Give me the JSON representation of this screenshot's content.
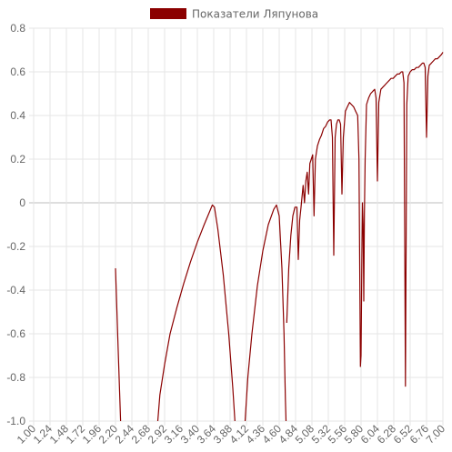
{
  "chart_data": {
    "type": "line",
    "legend": {
      "label": "Показатели Ляпунова",
      "position": "top"
    },
    "colors": {
      "series": "#8b0000",
      "grid": "#e5e5e5",
      "text": "#666666"
    },
    "grid": true,
    "ylim": [
      -1.0,
      0.8
    ],
    "xlim": [
      1.0,
      7.0
    ],
    "y_ticks": [
      "0.8",
      "0.6",
      "0.4",
      "0.2",
      "0",
      "-0.2",
      "-0.4",
      "-0.6",
      "-0.8",
      "-1.0"
    ],
    "x_ticks": [
      "1.00",
      "1.24",
      "1.48",
      "1.72",
      "1.96",
      "2.20",
      "2.44",
      "2.68",
      "2.92",
      "3.16",
      "3.40",
      "3.64",
      "3.88",
      "4.12",
      "4.36",
      "4.60",
      "4.84",
      "5.08",
      "5.32",
      "5.56",
      "5.80",
      "6.04",
      "6.28",
      "6.52",
      "6.76",
      "7.00"
    ],
    "series": [
      {
        "name": "Показатели Ляпунова",
        "segments": [
          [
            [
              2.2,
              -0.3
            ],
            [
              2.24,
              -0.68
            ],
            [
              2.275,
              -1.0
            ]
          ],
          [
            [
              2.82,
              -1.0
            ],
            [
              2.85,
              -0.88
            ],
            [
              2.92,
              -0.74
            ],
            [
              3.0,
              -0.6
            ],
            [
              3.1,
              -0.48
            ],
            [
              3.2,
              -0.37
            ],
            [
              3.3,
              -0.27
            ],
            [
              3.4,
              -0.18
            ],
            [
              3.5,
              -0.1
            ],
            [
              3.58,
              -0.04
            ],
            [
              3.62,
              -0.01
            ],
            [
              3.65,
              -0.02
            ],
            [
              3.7,
              -0.12
            ],
            [
              3.78,
              -0.33
            ],
            [
              3.86,
              -0.6
            ],
            [
              3.92,
              -0.85
            ],
            [
              3.95,
              -1.0
            ]
          ],
          [
            [
              4.1,
              -1.0
            ],
            [
              4.14,
              -0.8
            ],
            [
              4.2,
              -0.6
            ],
            [
              4.28,
              -0.38
            ],
            [
              4.36,
              -0.22
            ],
            [
              4.44,
              -0.1
            ],
            [
              4.52,
              -0.03
            ],
            [
              4.56,
              -0.01
            ],
            [
              4.6,
              -0.06
            ],
            [
              4.64,
              -0.3
            ],
            [
              4.67,
              -0.6
            ],
            [
              4.69,
              -0.9
            ],
            [
              4.7,
              -1.0
            ]
          ],
          [
            [
              4.71,
              -0.55
            ],
            [
              4.74,
              -0.3
            ],
            [
              4.77,
              -0.15
            ],
            [
              4.8,
              -0.06
            ],
            [
              4.83,
              -0.02
            ],
            [
              4.86,
              -0.02
            ],
            [
              4.88,
              -0.26
            ],
            [
              4.9,
              -0.08
            ],
            [
              4.92,
              -0.02
            ],
            [
              4.95,
              0.08
            ],
            [
              4.97,
              0.0
            ],
            [
              4.99,
              0.1
            ],
            [
              5.01,
              0.14
            ],
            [
              5.03,
              0.04
            ],
            [
              5.05,
              0.18
            ],
            [
              5.07,
              0.2
            ],
            [
              5.09,
              0.22
            ],
            [
              5.11,
              -0.06
            ],
            [
              5.13,
              0.2
            ],
            [
              5.16,
              0.26
            ],
            [
              5.19,
              0.29
            ],
            [
              5.22,
              0.31
            ],
            [
              5.25,
              0.34
            ],
            [
              5.28,
              0.35
            ],
            [
              5.31,
              0.37
            ],
            [
              5.34,
              0.38
            ],
            [
              5.36,
              0.38
            ],
            [
              5.38,
              0.3
            ],
            [
              5.4,
              -0.24
            ],
            [
              5.42,
              0.3
            ],
            [
              5.44,
              0.36
            ],
            [
              5.46,
              0.38
            ],
            [
              5.48,
              0.38
            ],
            [
              5.5,
              0.36
            ],
            [
              5.52,
              0.04
            ],
            [
              5.54,
              0.3
            ],
            [
              5.57,
              0.42
            ],
            [
              5.6,
              0.44
            ],
            [
              5.63,
              0.46
            ],
            [
              5.66,
              0.45
            ],
            [
              5.69,
              0.44
            ],
            [
              5.72,
              0.42
            ],
            [
              5.75,
              0.4
            ],
            [
              5.77,
              0.2
            ],
            [
              5.79,
              -0.75
            ],
            [
              5.8,
              -0.7
            ],
            [
              5.81,
              -0.3
            ],
            [
              5.82,
              0.0
            ],
            [
              5.83,
              -0.1
            ],
            [
              5.84,
              -0.45
            ],
            [
              5.85,
              -0.05
            ],
            [
              5.86,
              0.2
            ],
            [
              5.88,
              0.45
            ],
            [
              5.91,
              0.48
            ],
            [
              5.94,
              0.5
            ],
            [
              5.97,
              0.51
            ],
            [
              6.0,
              0.52
            ],
            [
              6.02,
              0.48
            ],
            [
              6.04,
              0.1
            ],
            [
              6.06,
              0.46
            ],
            [
              6.09,
              0.52
            ],
            [
              6.12,
              0.53
            ],
            [
              6.15,
              0.54
            ],
            [
              6.18,
              0.55
            ],
            [
              6.21,
              0.56
            ],
            [
              6.24,
              0.57
            ],
            [
              6.27,
              0.57
            ],
            [
              6.3,
              0.58
            ],
            [
              6.33,
              0.59
            ],
            [
              6.36,
              0.59
            ],
            [
              6.39,
              0.6
            ],
            [
              6.41,
              0.6
            ],
            [
              6.43,
              0.55
            ],
            [
              6.45,
              -0.84
            ],
            [
              6.47,
              0.45
            ],
            [
              6.49,
              0.58
            ],
            [
              6.52,
              0.6
            ],
            [
              6.55,
              0.61
            ],
            [
              6.58,
              0.61
            ],
            [
              6.61,
              0.62
            ],
            [
              6.64,
              0.62
            ],
            [
              6.67,
              0.63
            ],
            [
              6.7,
              0.64
            ],
            [
              6.72,
              0.64
            ],
            [
              6.74,
              0.62
            ],
            [
              6.76,
              0.3
            ],
            [
              6.78,
              0.58
            ],
            [
              6.8,
              0.63
            ],
            [
              6.83,
              0.64
            ],
            [
              6.86,
              0.65
            ],
            [
              6.89,
              0.66
            ],
            [
              6.92,
              0.66
            ],
            [
              6.95,
              0.67
            ],
            [
              6.98,
              0.68
            ],
            [
              7.0,
              0.69
            ]
          ]
        ]
      }
    ]
  }
}
